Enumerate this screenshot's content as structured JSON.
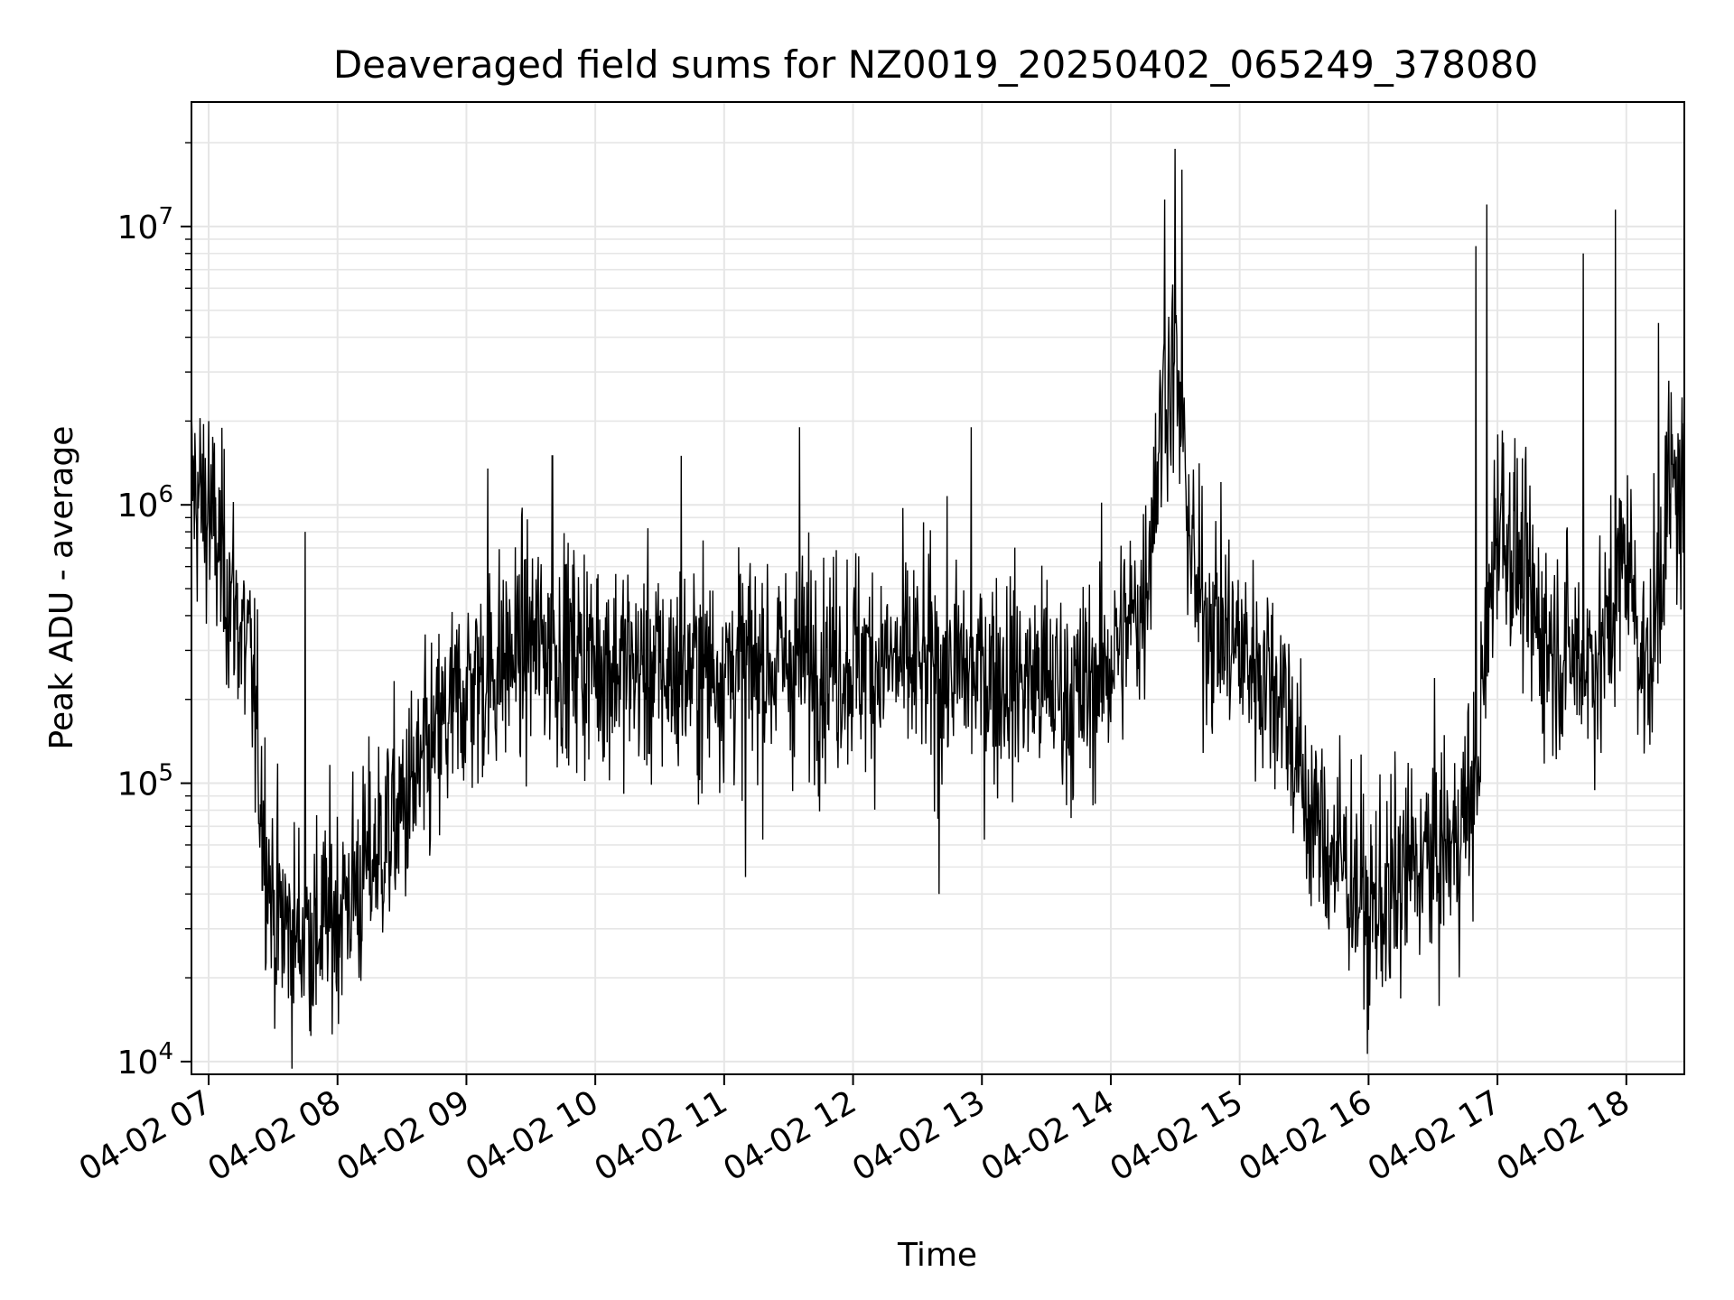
{
  "chart_data": {
    "type": "line",
    "title": "Deaveraged field sums for NZ0019_20250402_065249_378080",
    "xlabel": "Time",
    "ylabel": "Peak ADU - average",
    "yscale": "log",
    "ylim": [
      9000,
      28000000
    ],
    "xlim": [
      "2025-04-02 06:52",
      "2025-04-02 18:27"
    ],
    "x_tick_labels": [
      "04-02 07",
      "04-02 08",
      "04-02 09",
      "04-02 10",
      "04-02 11",
      "04-02 12",
      "04-02 13",
      "04-02 14",
      "04-02 15",
      "04-02 16",
      "04-02 17",
      "04-02 18"
    ],
    "x_tick_times": [
      "2025-04-02 07:00",
      "2025-04-02 08:00",
      "2025-04-02 09:00",
      "2025-04-02 10:00",
      "2025-04-02 11:00",
      "2025-04-02 12:00",
      "2025-04-02 13:00",
      "2025-04-02 14:00",
      "2025-04-02 15:00",
      "2025-04-02 16:00",
      "2025-04-02 17:00",
      "2025-04-02 18:00"
    ],
    "y_tick_labels": [
      {
        "value": 10000,
        "base": "10",
        "exp": "4"
      },
      {
        "value": 100000,
        "base": "10",
        "exp": "5"
      },
      {
        "value": 1000000,
        "base": "10",
        "exp": "6"
      },
      {
        "value": 10000000,
        "base": "10",
        "exp": "7"
      }
    ],
    "grid": true,
    "line_color": "#000000",
    "grid_color": "#e6e6e6",
    "series": [
      {
        "x": [
          "2025-04-02 06:52",
          "2025-04-02 07:00",
          "2025-04-02 07:10",
          "2025-04-02 07:20",
          "2025-04-02 07:25",
          "2025-04-02 07:30",
          "2025-04-02 07:40",
          "2025-04-02 07:50",
          "2025-04-02 08:00",
          "2025-04-02 08:10",
          "2025-04-02 08:20",
          "2025-04-02 08:30",
          "2025-04-02 08:40",
          "2025-04-02 08:50",
          "2025-04-02 09:00",
          "2025-04-02 09:30",
          "2025-04-02 10:00",
          "2025-04-02 10:30",
          "2025-04-02 11:00",
          "2025-04-02 11:30",
          "2025-04-02 12:00",
          "2025-04-02 12:30",
          "2025-04-02 13:00",
          "2025-04-02 13:30",
          "2025-04-02 13:45",
          "2025-04-02 14:00",
          "2025-04-02 14:15",
          "2025-04-02 14:25",
          "2025-04-02 14:30",
          "2025-04-02 14:40",
          "2025-04-02 15:00",
          "2025-04-02 15:20",
          "2025-04-02 15:30",
          "2025-04-02 15:40",
          "2025-04-02 15:50",
          "2025-04-02 16:00",
          "2025-04-02 16:10",
          "2025-04-02 16:20",
          "2025-04-02 16:40",
          "2025-04-02 16:50",
          "2025-04-02 17:00",
          "2025-04-02 17:10",
          "2025-04-02 17:20",
          "2025-04-02 17:30",
          "2025-04-02 17:40",
          "2025-04-02 17:50",
          "2025-04-02 18:00",
          "2025-04-02 18:10",
          "2025-04-02 18:20",
          "2025-04-02 18:27"
        ],
        "y": [
          1200000,
          900000,
          500000,
          250000,
          80000,
          35000,
          28000,
          30000,
          35000,
          45000,
          60000,
          80000,
          110000,
          160000,
          220000,
          320000,
          280000,
          250000,
          260000,
          270000,
          280000,
          260000,
          250000,
          230000,
          200000,
          280000,
          450000,
          2500000,
          3000000,
          450000,
          300000,
          220000,
          90000,
          60000,
          50000,
          35000,
          40000,
          50000,
          60000,
          100000,
          1000000,
          600000,
          350000,
          300000,
          280000,
          300000,
          700000,
          220000,
          1200000,
          1000000
        ],
        "peaks": [
          {
            "x": "2025-04-02 07:00",
            "y": 2000000
          },
          {
            "x": "2025-04-02 07:45",
            "y": 800000
          },
          {
            "x": "2025-04-02 09:10",
            "y": 1350000
          },
          {
            "x": "2025-04-02 09:40",
            "y": 1500000
          },
          {
            "x": "2025-04-02 10:40",
            "y": 1500000
          },
          {
            "x": "2025-04-02 11:35",
            "y": 1900000
          },
          {
            "x": "2025-04-02 12:55",
            "y": 1900000
          },
          {
            "x": "2025-04-02 14:25",
            "y": 12500000
          },
          {
            "x": "2025-04-02 14:30",
            "y": 19000000
          },
          {
            "x": "2025-04-02 14:33",
            "y": 16000000
          },
          {
            "x": "2025-04-02 16:50",
            "y": 8500000
          },
          {
            "x": "2025-04-02 16:55",
            "y": 12000000
          },
          {
            "x": "2025-04-02 17:40",
            "y": 8000000
          },
          {
            "x": "2025-04-02 17:55",
            "y": 11500000
          },
          {
            "x": "2025-04-02 18:15",
            "y": 4500000
          }
        ],
        "troughs": [
          {
            "x": "2025-04-02 07:50",
            "y": 16000
          },
          {
            "x": "2025-04-02 08:10",
            "y": 20000
          },
          {
            "x": "2025-04-02 11:10",
            "y": 46000
          },
          {
            "x": "2025-04-02 12:40",
            "y": 40000
          },
          {
            "x": "2025-04-02 16:00",
            "y": 13000
          },
          {
            "x": "2025-04-02 16:10",
            "y": 20000
          }
        ]
      }
    ]
  }
}
